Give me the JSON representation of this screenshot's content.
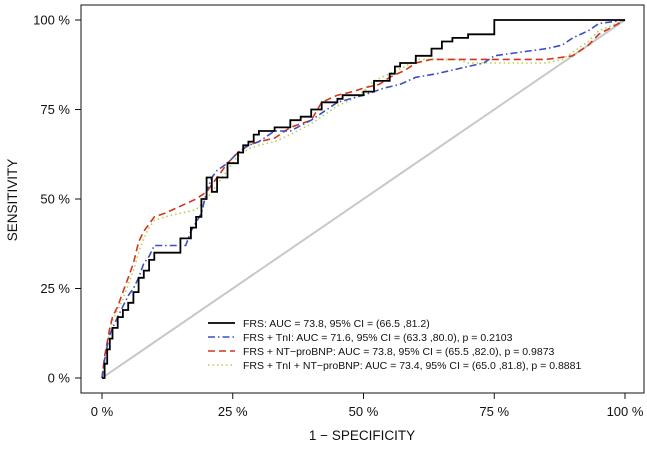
{
  "chart_data": {
    "type": "line",
    "title": "",
    "xlabel": "1 − SPECIFICITY",
    "ylabel": "SENSITIVITY",
    "xlim": [
      0,
      100
    ],
    "ylim": [
      0,
      100
    ],
    "x_ticks": [
      0,
      25,
      50,
      75,
      100
    ],
    "y_ticks": [
      0,
      25,
      50,
      75,
      100
    ],
    "x_tick_labels": [
      "0 %",
      "25 %",
      "50 %",
      "75 %",
      "100 %"
    ],
    "y_tick_labels": [
      "0 %",
      "25 %",
      "50 %",
      "75 %",
      "100 %"
    ],
    "grid": false,
    "legend_position": "bottom-right",
    "reference_line": {
      "x": [
        0,
        100
      ],
      "y": [
        0,
        100
      ],
      "color": "#c8c8c8"
    },
    "series": [
      {
        "name": "FRS:  AUC = 73.8,  95% CI = (66.5 ,81.2)",
        "color": "#000000",
        "dash": "solid",
        "x": [
          0,
          0.5,
          0.5,
          1,
          1,
          1.5,
          1.5,
          2,
          2,
          3,
          3,
          4,
          4,
          5,
          5,
          6,
          6,
          7,
          7,
          8,
          8,
          9,
          9,
          10,
          10,
          15,
          15,
          17,
          17,
          18,
          18,
          19,
          19,
          20,
          20,
          21,
          21,
          22,
          22,
          24,
          24,
          26,
          26,
          27,
          27,
          28,
          28,
          29,
          29,
          30,
          30,
          33,
          33,
          36,
          36,
          38,
          38,
          40,
          40,
          42,
          42,
          45,
          45,
          46,
          46,
          50,
          50,
          52,
          52,
          55,
          55,
          56,
          56,
          57,
          57,
          60,
          60,
          63,
          63,
          65,
          65,
          67,
          67,
          70,
          70,
          75,
          75,
          100
        ],
        "y": [
          0,
          0,
          4,
          4,
          8,
          8,
          11,
          11,
          14,
          14,
          17,
          17,
          19,
          19,
          21,
          21,
          24,
          24,
          28,
          28,
          30,
          30,
          33,
          33,
          35,
          35,
          39,
          39,
          42,
          42,
          45,
          45,
          50,
          50,
          56,
          56,
          52,
          52,
          56,
          56,
          60,
          60,
          63,
          63,
          65,
          65,
          66,
          66,
          68,
          68,
          69,
          69,
          70,
          70,
          72,
          72,
          73,
          73,
          75,
          75,
          77,
          77,
          78,
          78,
          79,
          79,
          80,
          80,
          83,
          83,
          85,
          85,
          87,
          87,
          88,
          88,
          90,
          90,
          92,
          92,
          94,
          94,
          95,
          95,
          96,
          96,
          100,
          100
        ]
      },
      {
        "name": "FRS + TnI:  AUC = 71.6,  95% CI = (63.3 ,80.0),   p = 0.2103",
        "color": "#3c4fc0",
        "dash": "dashdot",
        "x": [
          0,
          0.5,
          1,
          1.5,
          2,
          3,
          4,
          5,
          6,
          7,
          8,
          9,
          10,
          16,
          17,
          19,
          20,
          21,
          22,
          24,
          26,
          28,
          30,
          33,
          36,
          40,
          42,
          45,
          50,
          54,
          57,
          60,
          64,
          67,
          70,
          73,
          75,
          85,
          88,
          90,
          93,
          95,
          100
        ],
        "y": [
          0,
          5,
          9,
          12,
          14,
          17,
          20,
          23,
          25,
          28,
          32,
          34,
          37,
          37,
          41,
          46,
          52,
          56,
          58,
          60,
          63,
          65,
          66,
          69,
          69,
          72,
          74,
          77,
          79,
          81,
          82,
          84,
          85,
          86,
          87,
          88,
          90,
          92,
          93,
          95,
          97,
          99,
          100
        ]
      },
      {
        "name": "FRS + NT−proBNP:  AUC = 73.8,  95% CI = (65.5 ,82.0),   p = 0.9873",
        "color": "#d2341c",
        "dash": "dashed",
        "x": [
          0,
          0.5,
          1,
          1.5,
          2,
          3,
          4,
          5,
          6,
          7,
          8,
          9,
          10,
          12,
          15,
          18,
          20,
          22,
          24,
          26,
          28,
          30,
          33,
          36,
          40,
          42,
          45,
          48,
          50,
          53,
          55,
          58,
          60,
          63,
          65,
          70,
          75,
          85,
          90,
          93,
          95,
          100
        ],
        "y": [
          0,
          6,
          10,
          14,
          17,
          20,
          24,
          28,
          32,
          38,
          41,
          43,
          45,
          46,
          48,
          50,
          52,
          56,
          60,
          63,
          65,
          66,
          67,
          70,
          72,
          77,
          79,
          80,
          81,
          82,
          84,
          86,
          88,
          89,
          89,
          89,
          89,
          89,
          90,
          93,
          96,
          100
        ]
      },
      {
        "name": "FRS + TnI + NT−proBNP:  AUC = 73.4,  95% CI = (65.0 ,81.8),   p = 0.8881",
        "color": "#b4d050",
        "dash": "dotted",
        "x": [
          0,
          0.5,
          1,
          1.5,
          2,
          3,
          4,
          5,
          6,
          7,
          8,
          9,
          10,
          12,
          15,
          18,
          20,
          22,
          24,
          26,
          28,
          30,
          33,
          36,
          40,
          42,
          45,
          48,
          50,
          52,
          55,
          58,
          60,
          63,
          65,
          68,
          70,
          75,
          80,
          85,
          88,
          90,
          93,
          95,
          100
        ],
        "y": [
          0,
          6,
          10,
          13,
          16,
          19,
          22,
          26,
          30,
          35,
          39,
          42,
          44,
          45,
          46,
          47,
          50,
          54,
          58,
          62,
          64,
          65,
          66,
          68,
          71,
          73,
          76,
          78,
          80,
          83,
          85,
          87,
          89,
          89,
          89,
          89,
          88,
          88,
          88,
          88,
          89,
          91,
          94,
          97,
          100
        ]
      }
    ]
  }
}
